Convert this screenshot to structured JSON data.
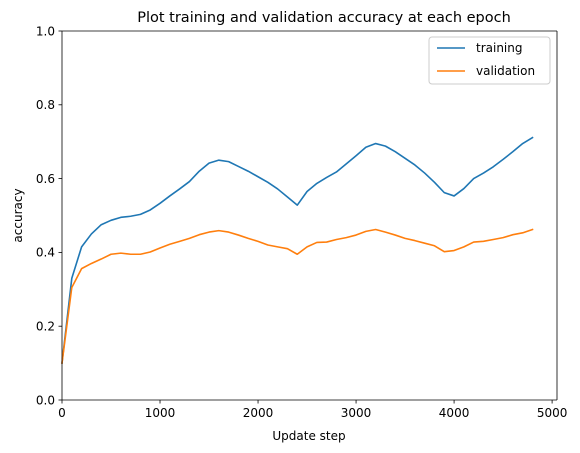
{
  "chart_data": {
    "type": "line",
    "title": "Plot training and validation accuracy at each epoch",
    "xlabel": "Update step",
    "ylabel": "accuracy",
    "xlim": [
      0,
      5050
    ],
    "ylim": [
      0,
      1.0
    ],
    "xticks": [
      0,
      1000,
      2000,
      3000,
      4000,
      5000
    ],
    "xtick_labels": [
      "0",
      "1000",
      "2000",
      "3000",
      "4000",
      "5000"
    ],
    "yticks": [
      0.0,
      0.2,
      0.4,
      0.6,
      0.8,
      1.0
    ],
    "ytick_labels": [
      "0.0",
      "0.2",
      "0.4",
      "0.6",
      "0.8",
      "1.0"
    ],
    "grid": false,
    "legend_position": "top-right",
    "x": [
      0,
      100,
      200,
      300,
      400,
      500,
      600,
      700,
      800,
      900,
      1000,
      1100,
      1200,
      1300,
      1400,
      1500,
      1600,
      1700,
      1800,
      1900,
      2000,
      2100,
      2200,
      2300,
      2400,
      2500,
      2600,
      2700,
      2800,
      2900,
      3000,
      3100,
      3200,
      3300,
      3400,
      3500,
      3600,
      3700,
      3800,
      3900,
      4000,
      4100,
      4200,
      4300,
      4400,
      4500,
      4600,
      4700,
      4800
    ],
    "series": [
      {
        "name": "training",
        "color": "#1f77b4",
        "values": [
          0.1,
          0.33,
          0.415,
          0.45,
          0.475,
          0.487,
          0.495,
          0.498,
          0.503,
          0.515,
          0.533,
          0.553,
          0.572,
          0.592,
          0.62,
          0.642,
          0.65,
          0.646,
          0.633,
          0.62,
          0.605,
          0.59,
          0.572,
          0.55,
          0.528,
          0.565,
          0.587,
          0.603,
          0.618,
          0.64,
          0.662,
          0.685,
          0.695,
          0.688,
          0.673,
          0.655,
          0.637,
          0.615,
          0.59,
          0.562,
          0.553,
          0.573,
          0.6,
          0.615,
          0.632,
          0.652,
          0.673,
          0.695,
          0.711
        ]
      },
      {
        "name": "validation",
        "color": "#ff7f0e",
        "values": [
          0.1,
          0.305,
          0.356,
          0.37,
          0.382,
          0.395,
          0.398,
          0.395,
          0.395,
          0.401,
          0.412,
          0.422,
          0.43,
          0.438,
          0.448,
          0.455,
          0.459,
          0.455,
          0.447,
          0.438,
          0.43,
          0.42,
          0.415,
          0.41,
          0.395,
          0.415,
          0.427,
          0.428,
          0.435,
          0.44,
          0.447,
          0.457,
          0.462,
          0.455,
          0.447,
          0.438,
          0.432,
          0.425,
          0.418,
          0.402,
          0.405,
          0.415,
          0.428,
          0.43,
          0.435,
          0.44,
          0.448,
          0.453,
          0.462
        ]
      }
    ]
  }
}
